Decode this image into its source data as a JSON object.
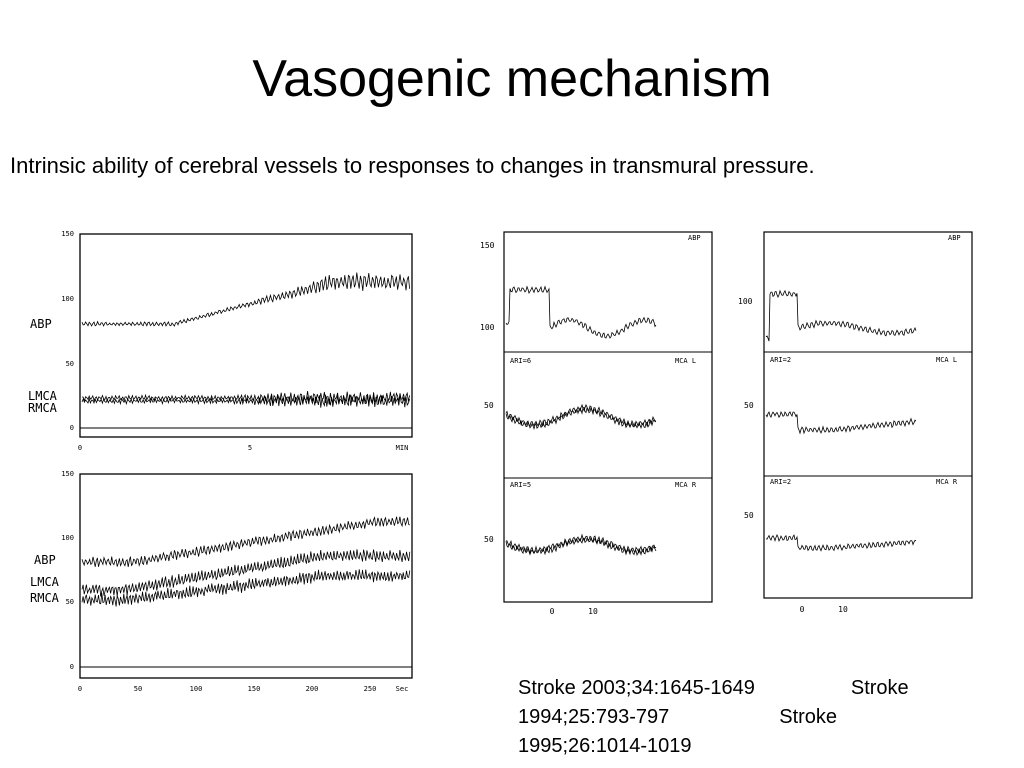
{
  "slide": {
    "title": "Vasogenic mechanism",
    "subtitle": "Intrinsic ability of cerebral vessels to responses to changes in transmural pressure.",
    "references": {
      "line1a": "Stroke 2003;34:1645-1649",
      "line1b": "Stroke",
      "line2a": "1994;25:793-797",
      "line2b": "Stroke",
      "line3": "1995;26:1014-1019"
    }
  },
  "figure_left_top": {
    "y_ticks": [
      "150",
      "100",
      "50",
      "0"
    ],
    "x_ticks": [
      "0",
      "5",
      "MIN"
    ],
    "traces": [
      "ABP",
      "LMCA",
      "RMCA"
    ]
  },
  "figure_left_bottom": {
    "y_ticks": [
      "150",
      "100",
      "50",
      "0"
    ],
    "x_ticks": [
      "0",
      "50",
      "100",
      "150",
      "200",
      "250",
      "Sec"
    ],
    "traces": [
      "ABP",
      "LMCA",
      "RMCA"
    ]
  },
  "figure_mid": {
    "abp": {
      "tag": "ABP",
      "y_ticks": [
        "150",
        "100"
      ]
    },
    "mca_l": {
      "tag": "MCA L",
      "ari": "ARI=6",
      "y_tick": "50"
    },
    "mca_r": {
      "tag": "MCA R",
      "ari": "ARI=5",
      "y_tick": "50"
    },
    "x_ticks": [
      "0",
      "10"
    ]
  },
  "figure_right": {
    "abp": {
      "tag": "ABP",
      "y_tick": "100"
    },
    "mca_l": {
      "tag": "MCA L",
      "ari": "ARI=2",
      "y_tick": "50"
    },
    "mca_r": {
      "tag": "MCA R",
      "ari": "ARI=2",
      "y_tick": "50"
    },
    "x_ticks": [
      "0",
      "10"
    ]
  }
}
